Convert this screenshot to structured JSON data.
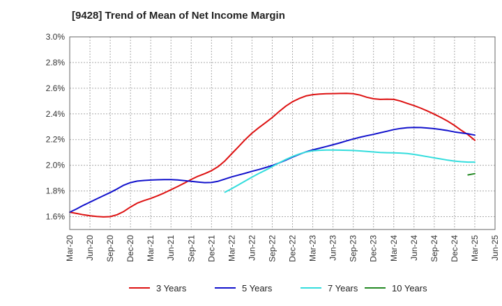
{
  "chart_data": {
    "type": "line",
    "title": "[9428]  Trend of Mean of Net Income Margin",
    "xlabel": "",
    "ylabel": "",
    "x_ticks": [
      "Mar-20",
      "Jun-20",
      "Sep-20",
      "Dec-20",
      "Mar-21",
      "Jun-21",
      "Sep-21",
      "Dec-21",
      "Mar-22",
      "Jun-22",
      "Sep-22",
      "Dec-22",
      "Mar-23",
      "Jun-23",
      "Sep-23",
      "Dec-23",
      "Mar-24",
      "Jun-24",
      "Sep-24",
      "Dec-24",
      "Mar-25",
      "Jun-25"
    ],
    "y_ticks": [
      "1.6%",
      "1.8%",
      "2.0%",
      "2.2%",
      "2.4%",
      "2.6%",
      "2.8%",
      "3.0%"
    ],
    "ylim": [
      1.5,
      3.0
    ],
    "grid": true,
    "legend_position": "bottom",
    "series": [
      {
        "name": "3 Years",
        "color": "#dd1111",
        "x": [
          "Mar-20",
          "Apr-20",
          "May-20",
          "Jun-20",
          "Jul-20",
          "Aug-20",
          "Sep-20",
          "Oct-20",
          "Nov-20",
          "Dec-20",
          "Jan-21",
          "Feb-21",
          "Mar-21",
          "Apr-21",
          "May-21",
          "Jun-21",
          "Jul-21",
          "Aug-21",
          "Sep-21",
          "Oct-21",
          "Nov-21",
          "Dec-21",
          "Jan-22",
          "Feb-22",
          "Mar-22",
          "Apr-22",
          "May-22",
          "Jun-22",
          "Jul-22",
          "Aug-22",
          "Sep-22",
          "Oct-22",
          "Nov-22",
          "Dec-22",
          "Jan-23",
          "Feb-23",
          "Mar-23",
          "Apr-23",
          "May-23",
          "Jun-23",
          "Jul-23",
          "Aug-23",
          "Sep-23",
          "Oct-23",
          "Nov-23",
          "Dec-23",
          "Jan-24",
          "Feb-24",
          "Mar-24",
          "Apr-24",
          "May-24",
          "Jun-24",
          "Jul-24",
          "Aug-24",
          "Sep-24",
          "Oct-24",
          "Nov-24",
          "Dec-24",
          "Jan-25",
          "Feb-25",
          "Mar-25"
        ],
        "values": [
          1.635,
          1.625,
          1.615,
          1.607,
          1.602,
          1.598,
          1.6,
          1.615,
          1.64,
          1.675,
          1.705,
          1.725,
          1.742,
          1.762,
          1.785,
          1.81,
          1.835,
          1.862,
          1.89,
          1.915,
          1.935,
          1.958,
          1.99,
          2.035,
          2.09,
          2.145,
          2.2,
          2.25,
          2.292,
          2.332,
          2.372,
          2.418,
          2.46,
          2.495,
          2.52,
          2.54,
          2.55,
          2.555,
          2.557,
          2.558,
          2.559,
          2.56,
          2.557,
          2.547,
          2.53,
          2.518,
          2.513,
          2.515,
          2.513,
          2.5,
          2.482,
          2.465,
          2.445,
          2.422,
          2.398,
          2.372,
          2.343,
          2.31,
          2.272,
          2.238,
          2.195
        ]
      },
      {
        "name": "5 Years",
        "color": "#1111cc",
        "x": [
          "Mar-20",
          "Apr-20",
          "May-20",
          "Jun-20",
          "Jul-20",
          "Aug-20",
          "Sep-20",
          "Oct-20",
          "Nov-20",
          "Dec-20",
          "Jan-21",
          "Feb-21",
          "Mar-21",
          "Apr-21",
          "May-21",
          "Jun-21",
          "Jul-21",
          "Aug-21",
          "Sep-21",
          "Oct-21",
          "Nov-21",
          "Dec-21",
          "Jan-22",
          "Feb-22",
          "Mar-22",
          "Apr-22",
          "May-22",
          "Jun-22",
          "Jul-22",
          "Aug-22",
          "Sep-22",
          "Oct-22",
          "Nov-22",
          "Dec-22",
          "Jan-23",
          "Feb-23",
          "Mar-23",
          "Apr-23",
          "May-23",
          "Jun-23",
          "Jul-23",
          "Aug-23",
          "Sep-23",
          "Oct-23",
          "Nov-23",
          "Dec-23",
          "Jan-24",
          "Feb-24",
          "Mar-24",
          "Apr-24",
          "May-24",
          "Jun-24",
          "Jul-24",
          "Aug-24",
          "Sep-24",
          "Oct-24",
          "Nov-24",
          "Dec-24",
          "Jan-25",
          "Feb-25",
          "Mar-25"
        ],
        "values": [
          1.635,
          1.66,
          1.688,
          1.713,
          1.738,
          1.763,
          1.788,
          1.815,
          1.845,
          1.865,
          1.877,
          1.882,
          1.885,
          1.887,
          1.888,
          1.889,
          1.886,
          1.88,
          1.875,
          1.87,
          1.865,
          1.866,
          1.876,
          1.893,
          1.91,
          1.924,
          1.938,
          1.953,
          1.967,
          1.982,
          1.998,
          2.018,
          2.04,
          2.063,
          2.085,
          2.105,
          2.12,
          2.133,
          2.146,
          2.16,
          2.174,
          2.19,
          2.205,
          2.218,
          2.23,
          2.241,
          2.253,
          2.265,
          2.278,
          2.287,
          2.293,
          2.295,
          2.294,
          2.29,
          2.285,
          2.278,
          2.27,
          2.26,
          2.252,
          2.245,
          2.235
        ]
      },
      {
        "name": "7 Years",
        "color": "#33dddd",
        "x": [
          "Feb-22",
          "Mar-22",
          "Apr-22",
          "May-22",
          "Jun-22",
          "Jul-22",
          "Aug-22",
          "Sep-22",
          "Oct-22",
          "Nov-22",
          "Dec-22",
          "Jan-23",
          "Feb-23",
          "Mar-23",
          "Apr-23",
          "May-23",
          "Jun-23",
          "Jul-23",
          "Aug-23",
          "Sep-23",
          "Oct-23",
          "Nov-23",
          "Dec-23",
          "Jan-24",
          "Feb-24",
          "Mar-24",
          "Apr-24",
          "May-24",
          "Jun-24",
          "Jul-24",
          "Aug-24",
          "Sep-24",
          "Oct-24",
          "Nov-24",
          "Dec-24",
          "Jan-25",
          "Feb-25",
          "Mar-25"
        ],
        "values": [
          1.79,
          1.818,
          1.848,
          1.878,
          1.908,
          1.936,
          1.962,
          1.99,
          2.018,
          2.045,
          2.068,
          2.088,
          2.103,
          2.113,
          2.117,
          2.119,
          2.119,
          2.118,
          2.117,
          2.115,
          2.112,
          2.108,
          2.104,
          2.1,
          2.098,
          2.097,
          2.095,
          2.092,
          2.085,
          2.076,
          2.067,
          2.058,
          2.049,
          2.04,
          2.033,
          2.028,
          2.025,
          2.025
        ]
      },
      {
        "name": "10 Years",
        "color": "#228822",
        "x": [
          "Feb-25",
          "Mar-25"
        ],
        "values": [
          1.925,
          1.935
        ]
      }
    ]
  }
}
